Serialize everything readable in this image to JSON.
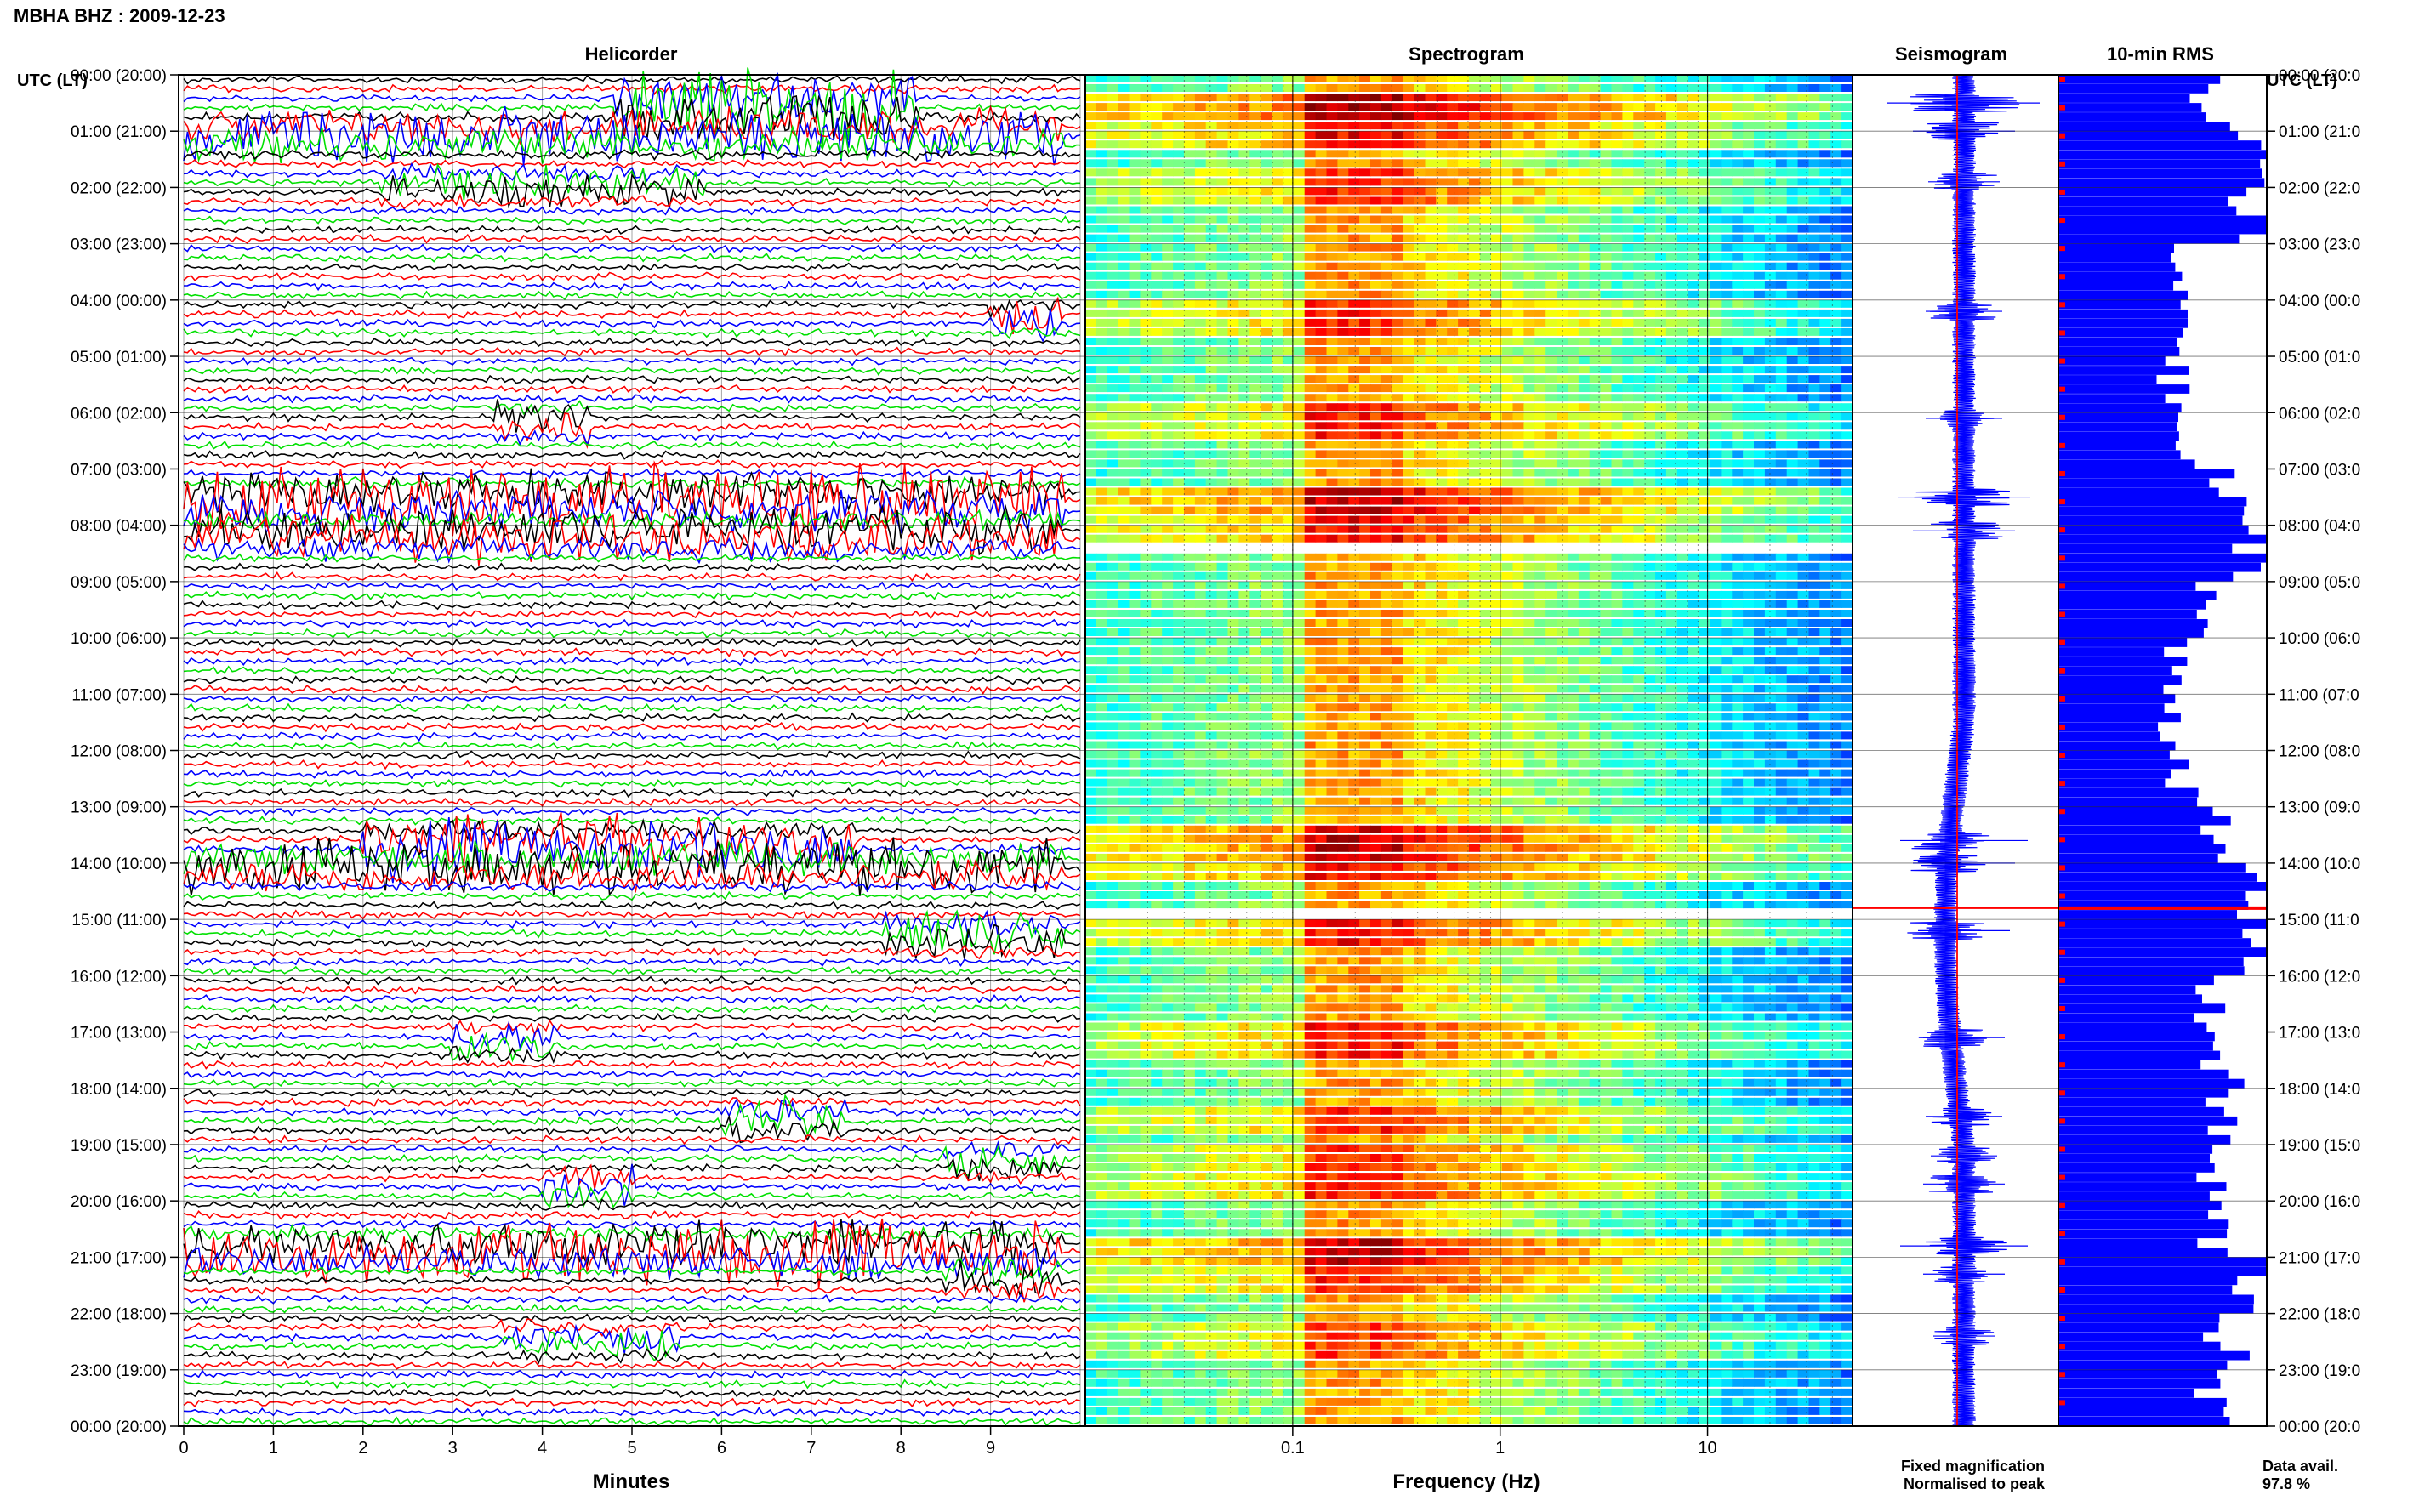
{
  "header": {
    "title": "MBHA BHZ : 2009-12-23"
  },
  "colors": {
    "trace_cycle": [
      "#000000",
      "#ff0000",
      "#0000ff",
      "#00e000"
    ],
    "fixed_magnification": "#0000ff",
    "normalised_to_peak": "#ff0000",
    "rms_bar": "#0000ff",
    "frame": "#000000"
  },
  "chart_data": [
    {
      "type": "line",
      "title": "Helicorder",
      "xlabel": "Minutes",
      "x_ticks": [
        "0",
        "1",
        "2",
        "3",
        "4",
        "5",
        "6",
        "7",
        "8",
        "9"
      ],
      "xlim": [
        0,
        10
      ],
      "left_axis_title": "UTC (LT)",
      "hour_labels": [
        "00:00 (20:00)",
        "01:00 (21:00)",
        "02:00 (22:00)",
        "03:00 (23:00)",
        "04:00 (00:00)",
        "05:00 (01:00)",
        "06:00 (02:00)",
        "07:00 (03:00)",
        "08:00 (04:00)",
        "09:00 (05:00)",
        "10:00 (06:00)",
        "11:00 (07:00)",
        "12:00 (08:00)",
        "13:00 (09:00)",
        "14:00 (10:00)",
        "15:00 (11:00)",
        "16:00 (12:00)",
        "17:00 (13:00)",
        "18:00 (14:00)",
        "19:00 (15:00)",
        "20:00 (16:00)",
        "21:00 (17:00)",
        "22:00 (18:00)",
        "23:00 (19:00)",
        "00:00 (20:00)"
      ],
      "lines_per_hour": 6,
      "line_minutes": 10,
      "events": [
        {
          "hour": 0.5,
          "minute_start": 4.8,
          "minute_end": 8.2,
          "amplitude": 3.0
        },
        {
          "hour": 1.0,
          "minute_start": 0.0,
          "minute_end": 9.8,
          "amplitude": 2.0
        },
        {
          "hour": 1.9,
          "minute_start": 2.2,
          "minute_end": 5.8,
          "amplitude": 1.4
        },
        {
          "hour": 4.2,
          "minute_start": 9.0,
          "minute_end": 9.8,
          "amplitude": 1.5
        },
        {
          "hour": 6.1,
          "minute_start": 3.5,
          "minute_end": 4.5,
          "amplitude": 1.5
        },
        {
          "hour": 7.5,
          "minute_start": 0.0,
          "minute_end": 9.8,
          "amplitude": 2.6
        },
        {
          "hour": 8.1,
          "minute_start": 0.0,
          "minute_end": 9.8,
          "amplitude": 2.0
        },
        {
          "hour": 13.6,
          "minute_start": 2.0,
          "minute_end": 7.5,
          "amplitude": 2.5
        },
        {
          "hour": 14.0,
          "minute_start": 0.0,
          "minute_end": 9.8,
          "amplitude": 2.0
        },
        {
          "hour": 15.2,
          "minute_start": 7.8,
          "minute_end": 9.8,
          "amplitude": 1.8
        },
        {
          "hour": 17.1,
          "minute_start": 3.0,
          "minute_end": 4.2,
          "amplitude": 1.6
        },
        {
          "hour": 18.5,
          "minute_start": 6.0,
          "minute_end": 7.4,
          "amplitude": 1.5
        },
        {
          "hour": 19.2,
          "minute_start": 8.5,
          "minute_end": 9.8,
          "amplitude": 1.3
        },
        {
          "hour": 19.7,
          "minute_start": 4.0,
          "minute_end": 5.0,
          "amplitude": 1.6
        },
        {
          "hour": 20.8,
          "minute_start": 0.0,
          "minute_end": 9.8,
          "amplitude": 2.5
        },
        {
          "hour": 21.3,
          "minute_start": 8.5,
          "minute_end": 9.8,
          "amplitude": 1.6
        },
        {
          "hour": 22.4,
          "minute_start": 3.5,
          "minute_end": 5.5,
          "amplitude": 1.2
        }
      ]
    },
    {
      "type": "heatmap",
      "title": "Spectrogram",
      "xlabel": "Frequency (Hz)",
      "x_scale": "log",
      "xlim": [
        0.01,
        50
      ],
      "x_ticks": [
        0.1,
        1,
        10
      ],
      "x_tick_labels": [
        "0.1",
        "1",
        "10"
      ],
      "gap_hours": [
        [
          8.25,
          8.5
        ],
        [
          14.8,
          14.95
        ]
      ],
      "energy_band_hz": [
        0.12,
        0.35
      ]
    },
    {
      "type": "line",
      "title": "Seismogram",
      "orientation": "vertical",
      "legend": [
        {
          "label": "Fixed magnification",
          "color": "#0000ff"
        },
        {
          "label": "Normalised to peak",
          "color": "#ff0000"
        }
      ],
      "peak_marker_hour": 14.8
    },
    {
      "type": "bar",
      "title": "10-min RMS",
      "orientation": "horizontal",
      "right_axis_title": "UTC (LT)",
      "bins_per_hour": 6,
      "hourly_rms_relative": [
        0.72,
        0.95,
        0.9,
        0.55,
        0.62,
        0.55,
        0.58,
        0.8,
        0.98,
        0.7,
        0.55,
        0.55,
        0.6,
        0.72,
        0.95,
        1.0,
        0.7,
        0.78,
        0.78,
        0.72,
        0.75,
        0.95,
        0.8,
        0.72
      ],
      "peak_hour": 14.8,
      "data_availability_label": "Data avail.",
      "data_availability_value": "97.8 %"
    }
  ]
}
